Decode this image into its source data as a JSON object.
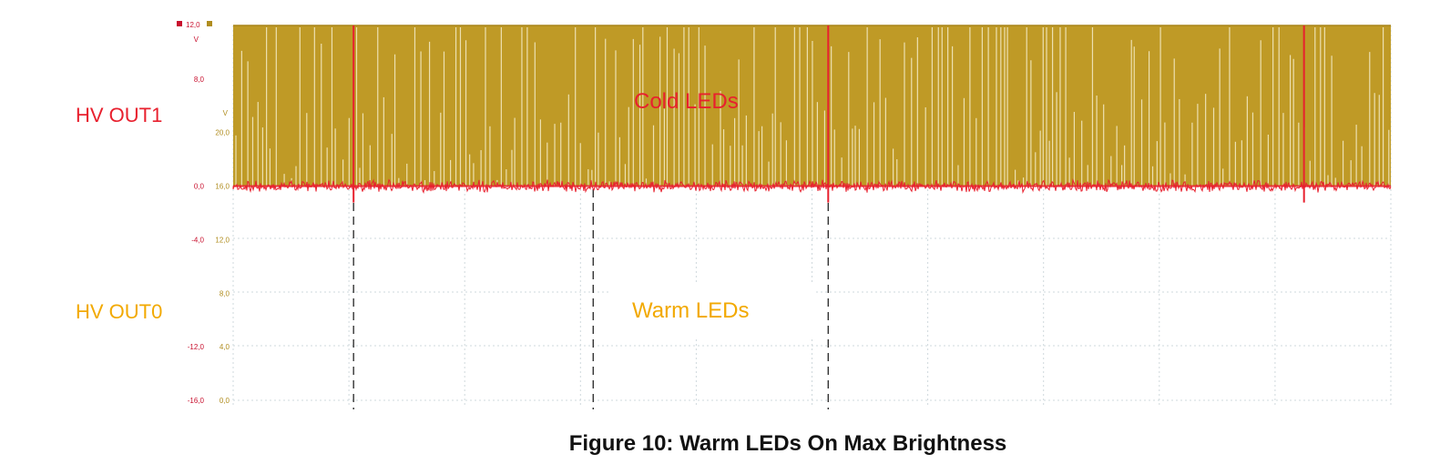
{
  "figure": {
    "caption": "Figure 10: Warm LEDs On Max Brightness"
  },
  "channels": [
    {
      "name": "HV OUT1",
      "color": "#e8202e"
    },
    {
      "name": "HV OUT0",
      "color": "#f2a900"
    }
  ],
  "annotations": {
    "cold": {
      "text": "Cold LEDs",
      "color": "#e8202e"
    },
    "warm": {
      "text": "Warm LEDs",
      "color": "#f2a900",
      "box_color": "#ffffff"
    }
  },
  "colors": {
    "channel1_trace": "#e8202e",
    "channel0_fill": "#bf9a26",
    "channel0_gap": "#ede0b0",
    "grid": "#cfd8dc",
    "cursor": "#333333"
  },
  "chart_data": {
    "type": "line",
    "title": "",
    "grid": true,
    "left_axis": {
      "unit": "V",
      "ticks": [
        {
          "value": 8,
          "label": "8,0"
        },
        {
          "value": 0,
          "label": "0,0"
        },
        {
          "value": -4,
          "label": "-4,0"
        },
        {
          "value": -12,
          "label": "-12,0"
        },
        {
          "value": -16,
          "label": "-16,0"
        }
      ],
      "top_value": 12,
      "top_label": "12,0",
      "range": [
        -16,
        12
      ]
    },
    "right_axis": {
      "unit": "V",
      "ticks": [
        {
          "value": 20,
          "label": "20,0"
        },
        {
          "value": 16,
          "label": "16,0"
        },
        {
          "value": 12,
          "label": "12,0"
        },
        {
          "value": 8,
          "label": "8,0"
        },
        {
          "value": 4,
          "label": "4,0"
        },
        {
          "value": 0,
          "label": "0,0"
        }
      ],
      "range": [
        0,
        28
      ]
    },
    "time_range": [
      0,
      1
    ],
    "series": [
      {
        "name": "HV OUT1",
        "kind": "noisy-baseline-with-spikes",
        "baseline": 0,
        "noise": 0.35,
        "spike_peak": 12,
        "spike_times": [
          0.104,
          0.514,
          0.925
        ]
      },
      {
        "name": "HV OUT0",
        "kind": "pwm-high-fill",
        "low": 0,
        "high": 12
      }
    ],
    "cursors": [
      {
        "time": 0.104,
        "style": "dashed"
      },
      {
        "time": 0.311,
        "style": "dashed"
      },
      {
        "time": 0.514,
        "style": "dashed"
      }
    ]
  }
}
